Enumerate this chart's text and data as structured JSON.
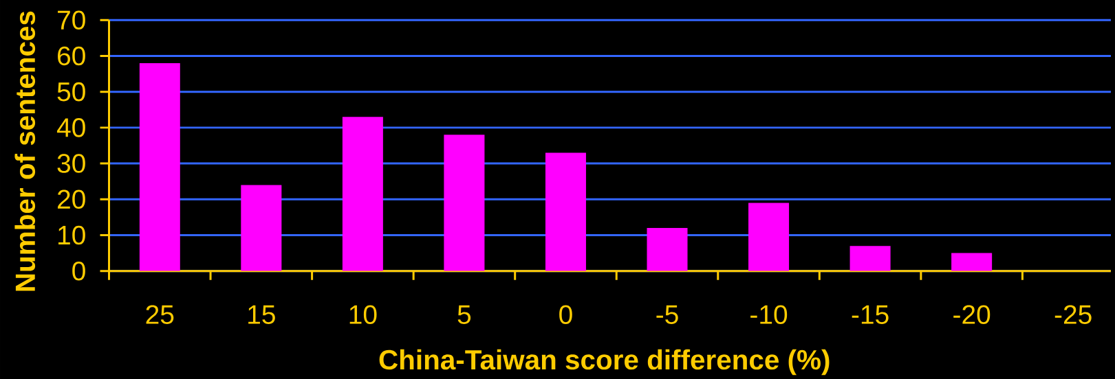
{
  "chart_data": {
    "type": "bar",
    "xlabel": "China-Taiwan score difference (%)",
    "ylabel": "Number of sentences",
    "categories": [
      "25",
      "15",
      "10",
      "5",
      "0",
      "-5",
      "-10",
      "-15",
      "-20",
      "-25"
    ],
    "values": [
      58,
      24,
      43,
      38,
      33,
      12,
      19,
      7,
      5,
      0
    ],
    "color": "#ff00ff",
    "ylim": [
      0,
      70
    ],
    "yticks": [
      0,
      10,
      20,
      30,
      40,
      50,
      60,
      70
    ],
    "grid": "y"
  }
}
